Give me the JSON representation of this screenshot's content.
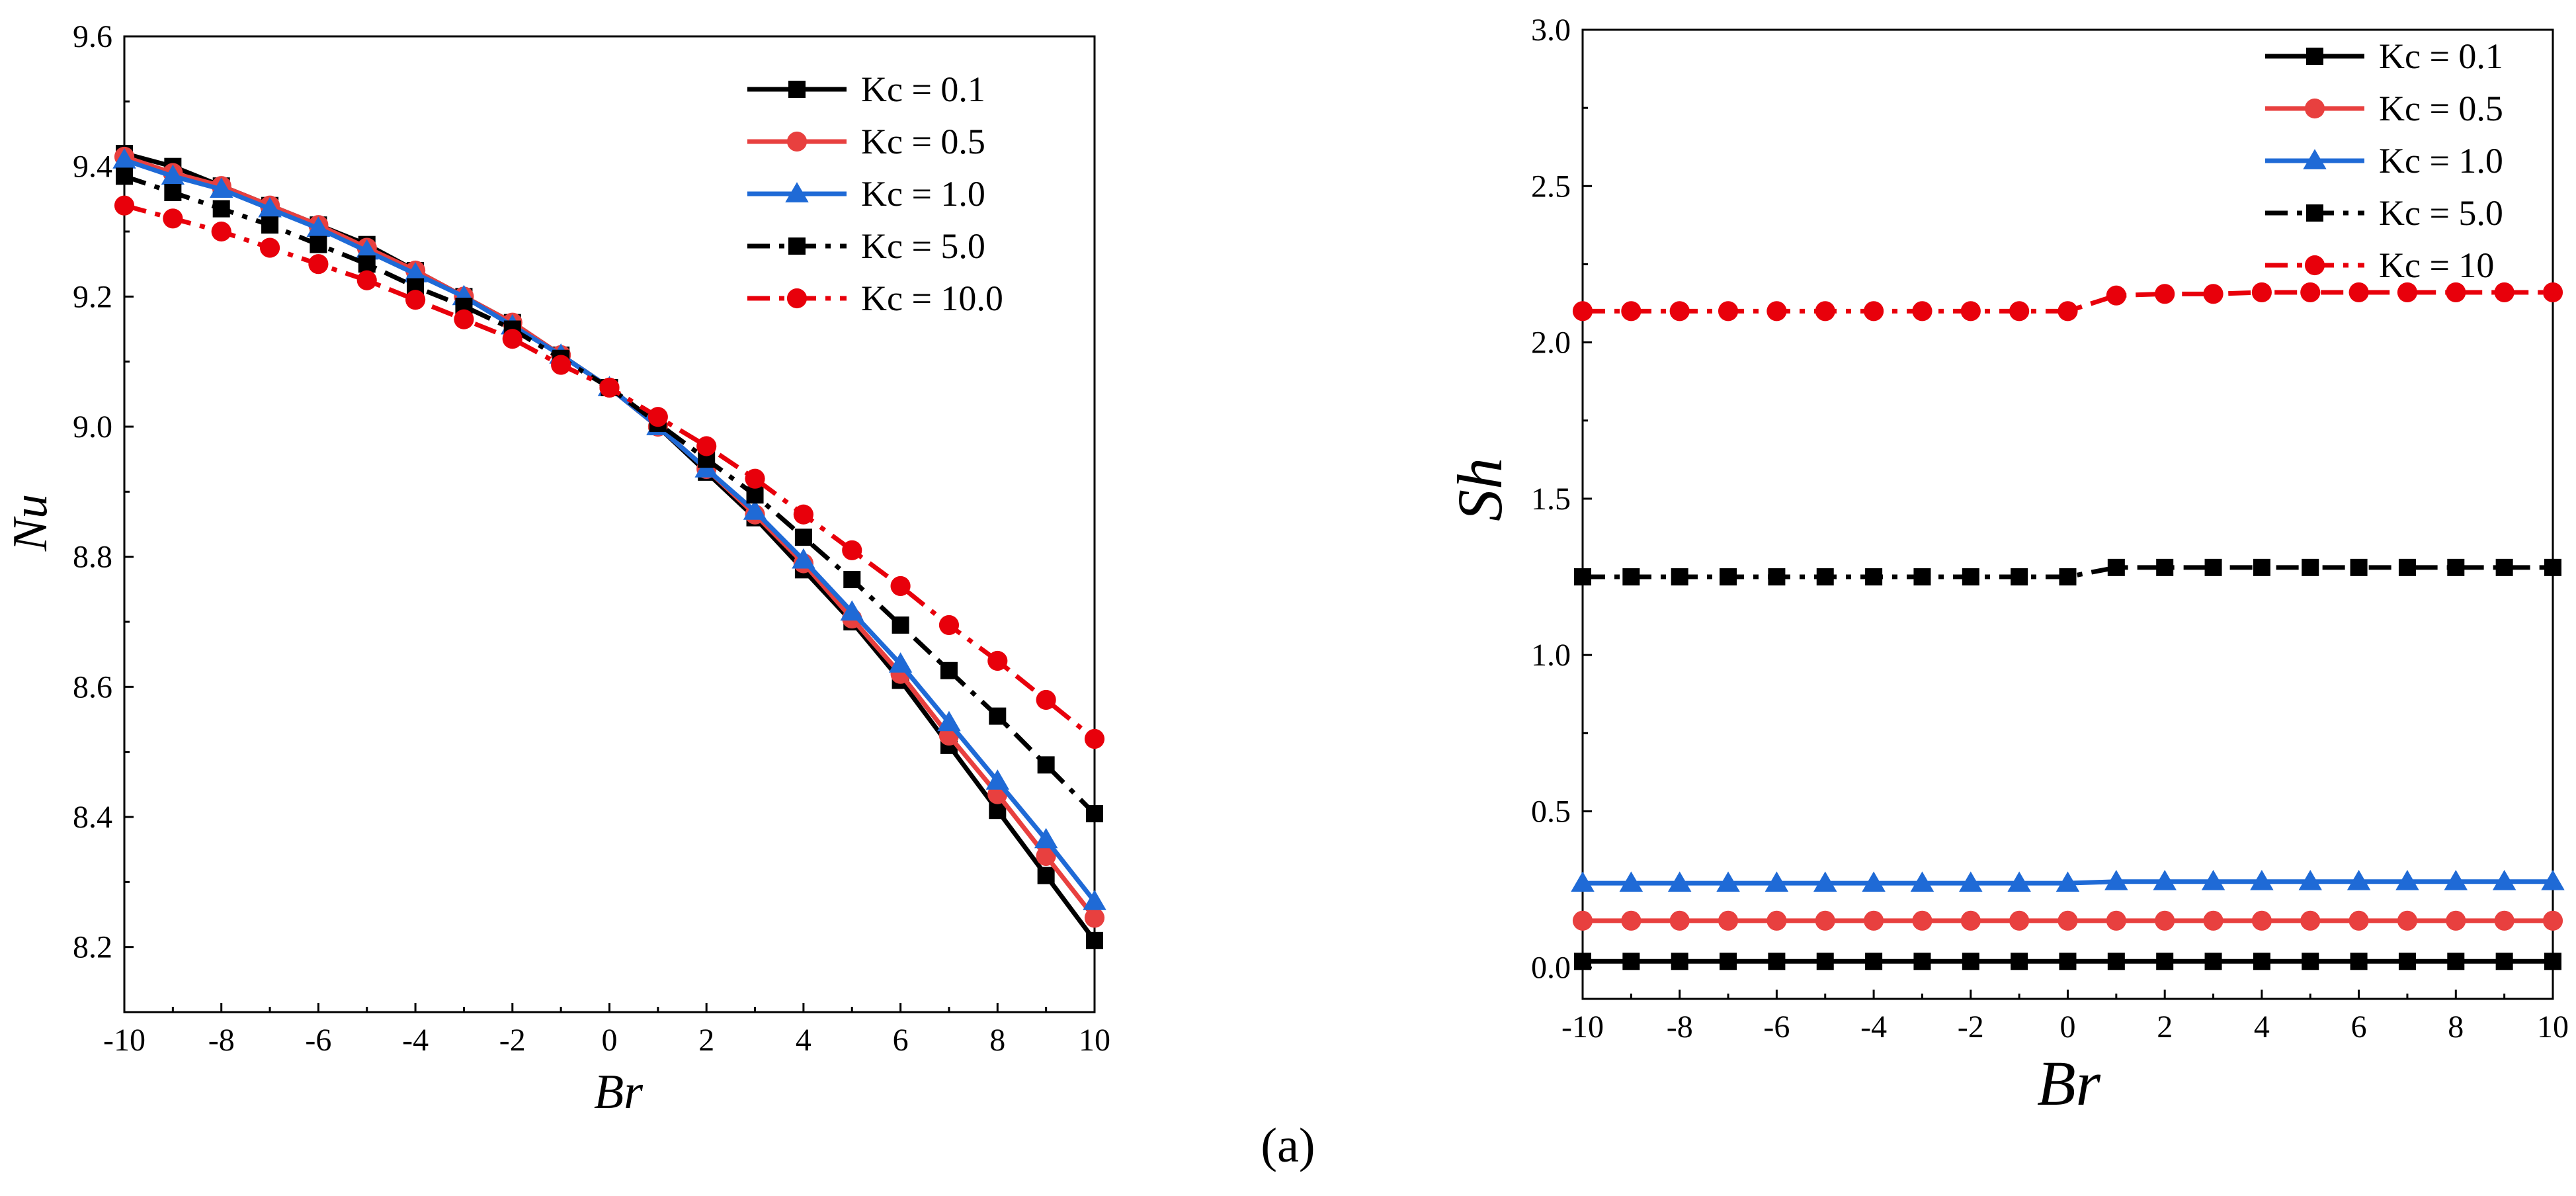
{
  "caption": "(a)",
  "chart_data": [
    {
      "type": "line",
      "xlabel": "Br",
      "ylabel": "Nu",
      "xlim": [
        -10,
        10
      ],
      "ylim": [
        8.1,
        9.6
      ],
      "xticks": [
        -10,
        -8,
        -6,
        -4,
        -2,
        0,
        2,
        4,
        6,
        8,
        10
      ],
      "xtick_labels": [
        "-10",
        "-8",
        "-6",
        "-4",
        "-2",
        "0",
        "2",
        "4",
        "6",
        "8",
        "10"
      ],
      "yticks": [
        8.2,
        8.4,
        8.6,
        8.8,
        9.0,
        9.2,
        9.4,
        9.6
      ],
      "ytick_labels": [
        "8.2",
        "8.4",
        "8.6",
        "8.8",
        "9.0",
        "9.2",
        "9.4",
        "9.6"
      ],
      "legend_position": "top-right",
      "x": [
        -10,
        -9,
        -8,
        -7,
        -6,
        -5,
        -4,
        -3,
        -2,
        -1,
        0,
        1,
        2,
        3,
        4,
        5,
        6,
        7,
        8,
        9,
        10
      ],
      "series": [
        {
          "name": "Kc = 0.1",
          "color": "#000000",
          "dash": "solid",
          "marker": "square",
          "values": [
            9.42,
            9.4,
            9.37,
            9.34,
            9.31,
            9.28,
            9.24,
            9.2,
            9.16,
            9.11,
            9.06,
            9.0,
            8.93,
            8.86,
            8.78,
            8.7,
            8.61,
            8.51,
            8.41,
            8.31,
            8.21
          ]
        },
        {
          "name": "Kc = 0.5",
          "color": "#e8403f",
          "dash": "solid",
          "marker": "circle",
          "values": [
            9.415,
            9.39,
            9.37,
            9.34,
            9.31,
            9.275,
            9.24,
            9.2,
            9.16,
            9.11,
            9.06,
            9.0,
            8.935,
            8.865,
            8.79,
            8.705,
            8.62,
            8.525,
            8.435,
            8.34,
            8.245
          ]
        },
        {
          "name": "Kc = 1.0",
          "color": "#1f6ad6",
          "dash": "solid",
          "marker": "triangle",
          "values": [
            9.41,
            9.385,
            9.365,
            9.335,
            9.305,
            9.27,
            9.235,
            9.2,
            9.155,
            9.11,
            9.06,
            9.0,
            8.935,
            8.87,
            8.795,
            8.715,
            8.635,
            8.545,
            8.455,
            8.365,
            8.27
          ]
        },
        {
          "name": "Kc = 5.0",
          "color": "#000000",
          "dash": "dashdot",
          "marker": "square",
          "values": [
            9.385,
            9.36,
            9.335,
            9.31,
            9.28,
            9.25,
            9.215,
            9.185,
            9.15,
            9.105,
            9.06,
            9.005,
            8.95,
            8.895,
            8.83,
            8.765,
            8.695,
            8.625,
            8.555,
            8.48,
            8.405
          ]
        },
        {
          "name": "Kc = 10.0",
          "color": "#e8000b",
          "dash": "dashdot",
          "marker": "circle",
          "values": [
            9.34,
            9.32,
            9.3,
            9.275,
            9.25,
            9.225,
            9.195,
            9.165,
            9.135,
            9.095,
            9.06,
            9.015,
            8.97,
            8.92,
            8.865,
            8.81,
            8.755,
            8.695,
            8.64,
            8.58,
            8.52
          ]
        }
      ]
    },
    {
      "type": "line",
      "xlabel": "Br",
      "ylabel": "Sh",
      "xlim": [
        -10,
        10
      ],
      "ylim": [
        -0.1,
        3.0
      ],
      "xticks": [
        -10,
        -8,
        -6,
        -4,
        -2,
        0,
        2,
        4,
        6,
        8,
        10
      ],
      "xtick_labels": [
        "-10",
        "-8",
        "-6",
        "-4",
        "-2",
        "0",
        "2",
        "4",
        "6",
        "8",
        "10"
      ],
      "yticks": [
        0.0,
        0.5,
        1.0,
        1.5,
        2.0,
        2.5,
        3.0
      ],
      "ytick_labels": [
        "0.0",
        "0.5",
        "1.0",
        "1.5",
        "2.0",
        "2.5",
        "3.0"
      ],
      "legend_position": "top-right",
      "x": [
        -10,
        -9,
        -8,
        -7,
        -6,
        -5,
        -4,
        -3,
        -2,
        -1,
        0,
        1,
        2,
        3,
        4,
        5,
        6,
        7,
        8,
        9,
        10
      ],
      "series": [
        {
          "name": "Kc = 0.1",
          "color": "#000000",
          "dash": "solid",
          "marker": "square",
          "values": [
            0.02,
            0.02,
            0.02,
            0.02,
            0.02,
            0.02,
            0.02,
            0.02,
            0.02,
            0.02,
            0.02,
            0.02,
            0.02,
            0.02,
            0.02,
            0.02,
            0.02,
            0.02,
            0.02,
            0.02,
            0.02
          ]
        },
        {
          "name": "Kc = 0.5",
          "color": "#e8403f",
          "dash": "solid",
          "marker": "circle",
          "values": [
            0.15,
            0.15,
            0.15,
            0.15,
            0.15,
            0.15,
            0.15,
            0.15,
            0.15,
            0.15,
            0.15,
            0.15,
            0.15,
            0.15,
            0.15,
            0.15,
            0.15,
            0.15,
            0.15,
            0.15,
            0.15
          ]
        },
        {
          "name": "Kc = 1.0",
          "color": "#1f6ad6",
          "dash": "solid",
          "marker": "triangle",
          "values": [
            0.27,
            0.27,
            0.27,
            0.27,
            0.27,
            0.27,
            0.27,
            0.27,
            0.27,
            0.27,
            0.27,
            0.275,
            0.275,
            0.275,
            0.275,
            0.275,
            0.275,
            0.275,
            0.275,
            0.275,
            0.275
          ]
        },
        {
          "name": "Kc = 5.0",
          "color": "#000000",
          "dash": "dashdot",
          "marker": "square",
          "values": [
            1.25,
            1.25,
            1.25,
            1.25,
            1.25,
            1.25,
            1.25,
            1.25,
            1.25,
            1.25,
            1.25,
            1.28,
            1.28,
            1.28,
            1.28,
            1.28,
            1.28,
            1.28,
            1.28,
            1.28,
            1.28
          ]
        },
        {
          "name": "Kc = 10",
          "color": "#e8000b",
          "dash": "dashdot",
          "marker": "circle",
          "values": [
            2.1,
            2.1,
            2.1,
            2.1,
            2.1,
            2.1,
            2.1,
            2.1,
            2.1,
            2.1,
            2.1,
            2.15,
            2.155,
            2.155,
            2.16,
            2.16,
            2.16,
            2.16,
            2.16,
            2.16,
            2.16
          ]
        }
      ]
    }
  ]
}
